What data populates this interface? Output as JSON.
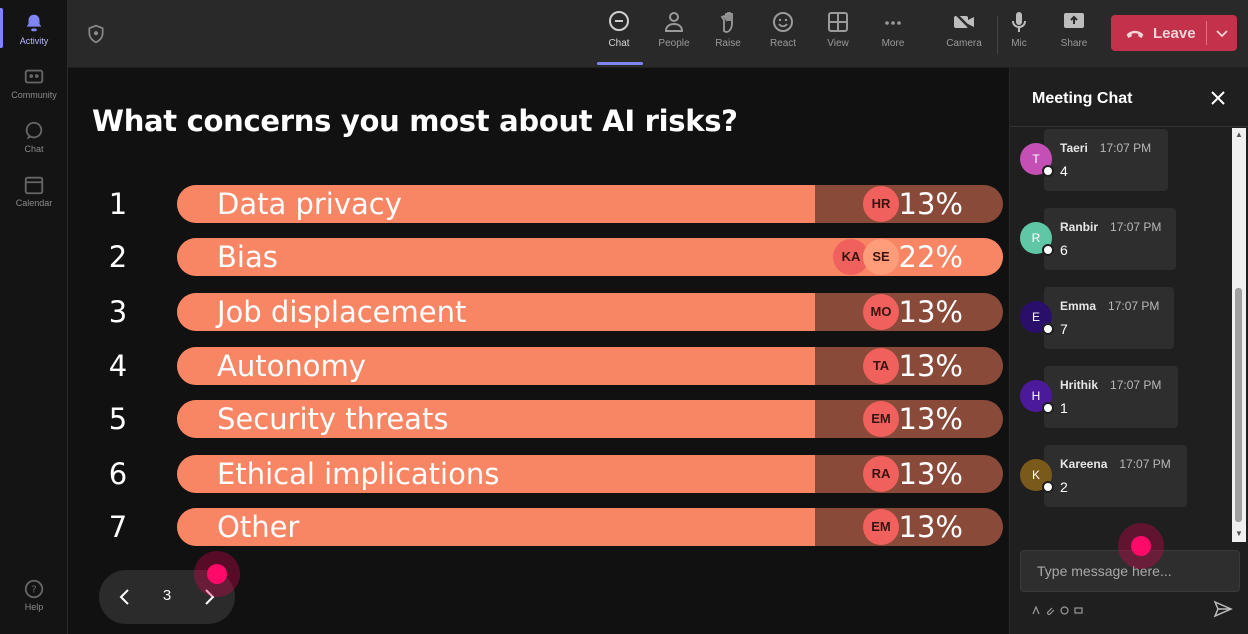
{
  "rail": {
    "items": [
      {
        "label": "Activity",
        "icon": "bell-icon"
      },
      {
        "label": "Community",
        "icon": "community-icon"
      },
      {
        "label": "Chat",
        "icon": "chat-icon"
      },
      {
        "label": "Calendar",
        "icon": "calendar-icon"
      }
    ],
    "help_label": "Help"
  },
  "toolbar": {
    "buttons": [
      {
        "label": "Chat",
        "icon": "chat-icon"
      },
      {
        "label": "People",
        "icon": "people-icon"
      },
      {
        "label": "Raise",
        "icon": "raise-hand-icon"
      },
      {
        "label": "React",
        "icon": "smiley-icon"
      },
      {
        "label": "View",
        "icon": "grid-view-icon"
      },
      {
        "label": "More",
        "icon": "more-icon"
      },
      {
        "label": "Camera",
        "icon": "camera-off-icon"
      },
      {
        "label": "Mic",
        "icon": "mic-icon"
      },
      {
        "label": "Share",
        "icon": "share-icon"
      }
    ],
    "leave_label": "Leave",
    "leave_color": "#c4314b"
  },
  "poll": {
    "question": "What concerns you most about AI risks?",
    "options": [
      {
        "num": "1",
        "label": "Data privacy",
        "percent": "13%",
        "share": 0.13,
        "voters": [
          "HR"
        ]
      },
      {
        "num": "2",
        "label": "Bias",
        "percent": "22%",
        "share": 0.22,
        "voters": [
          "KA",
          "SE"
        ]
      },
      {
        "num": "3",
        "label": "Job displacement",
        "percent": "13%",
        "share": 0.13,
        "voters": [
          "MO"
        ]
      },
      {
        "num": "4",
        "label": "Autonomy",
        "percent": "13%",
        "share": 0.13,
        "voters": [
          "TA"
        ]
      },
      {
        "num": "5",
        "label": "Security threats",
        "percent": "13%",
        "share": 0.13,
        "voters": [
          "EM"
        ]
      },
      {
        "num": "6",
        "label": "Ethical implications",
        "percent": "13%",
        "share": 0.13,
        "voters": [
          "RA"
        ]
      },
      {
        "num": "7",
        "label": "Other",
        "percent": "13%",
        "share": 0.13,
        "voters": [
          "EM"
        ]
      }
    ],
    "colors": {
      "fill": "#f88563",
      "track": "#8a4a3a",
      "voter": "#f0605c"
    },
    "page": "3"
  },
  "chat": {
    "title": "Meeting Chat",
    "messages": [
      {
        "initial": "T",
        "name": "Taeri",
        "time": "17:07 PM",
        "text": "4",
        "color": "#c44fb5"
      },
      {
        "initial": "R",
        "name": "Ranbir",
        "time": "17:07 PM",
        "text": "6",
        "color": "#5fc6a6"
      },
      {
        "initial": "E",
        "name": "Emma",
        "time": "17:07 PM",
        "text": "7",
        "color": "#2a0f6a"
      },
      {
        "initial": "H",
        "name": "Hrithik",
        "time": "17:07 PM",
        "text": "1",
        "color": "#4a1a9a"
      },
      {
        "initial": "K",
        "name": "Kareena",
        "time": "17:07 PM",
        "text": "2",
        "color": "#7a5a1a"
      }
    ],
    "input_placeholder": "Type message here..."
  }
}
